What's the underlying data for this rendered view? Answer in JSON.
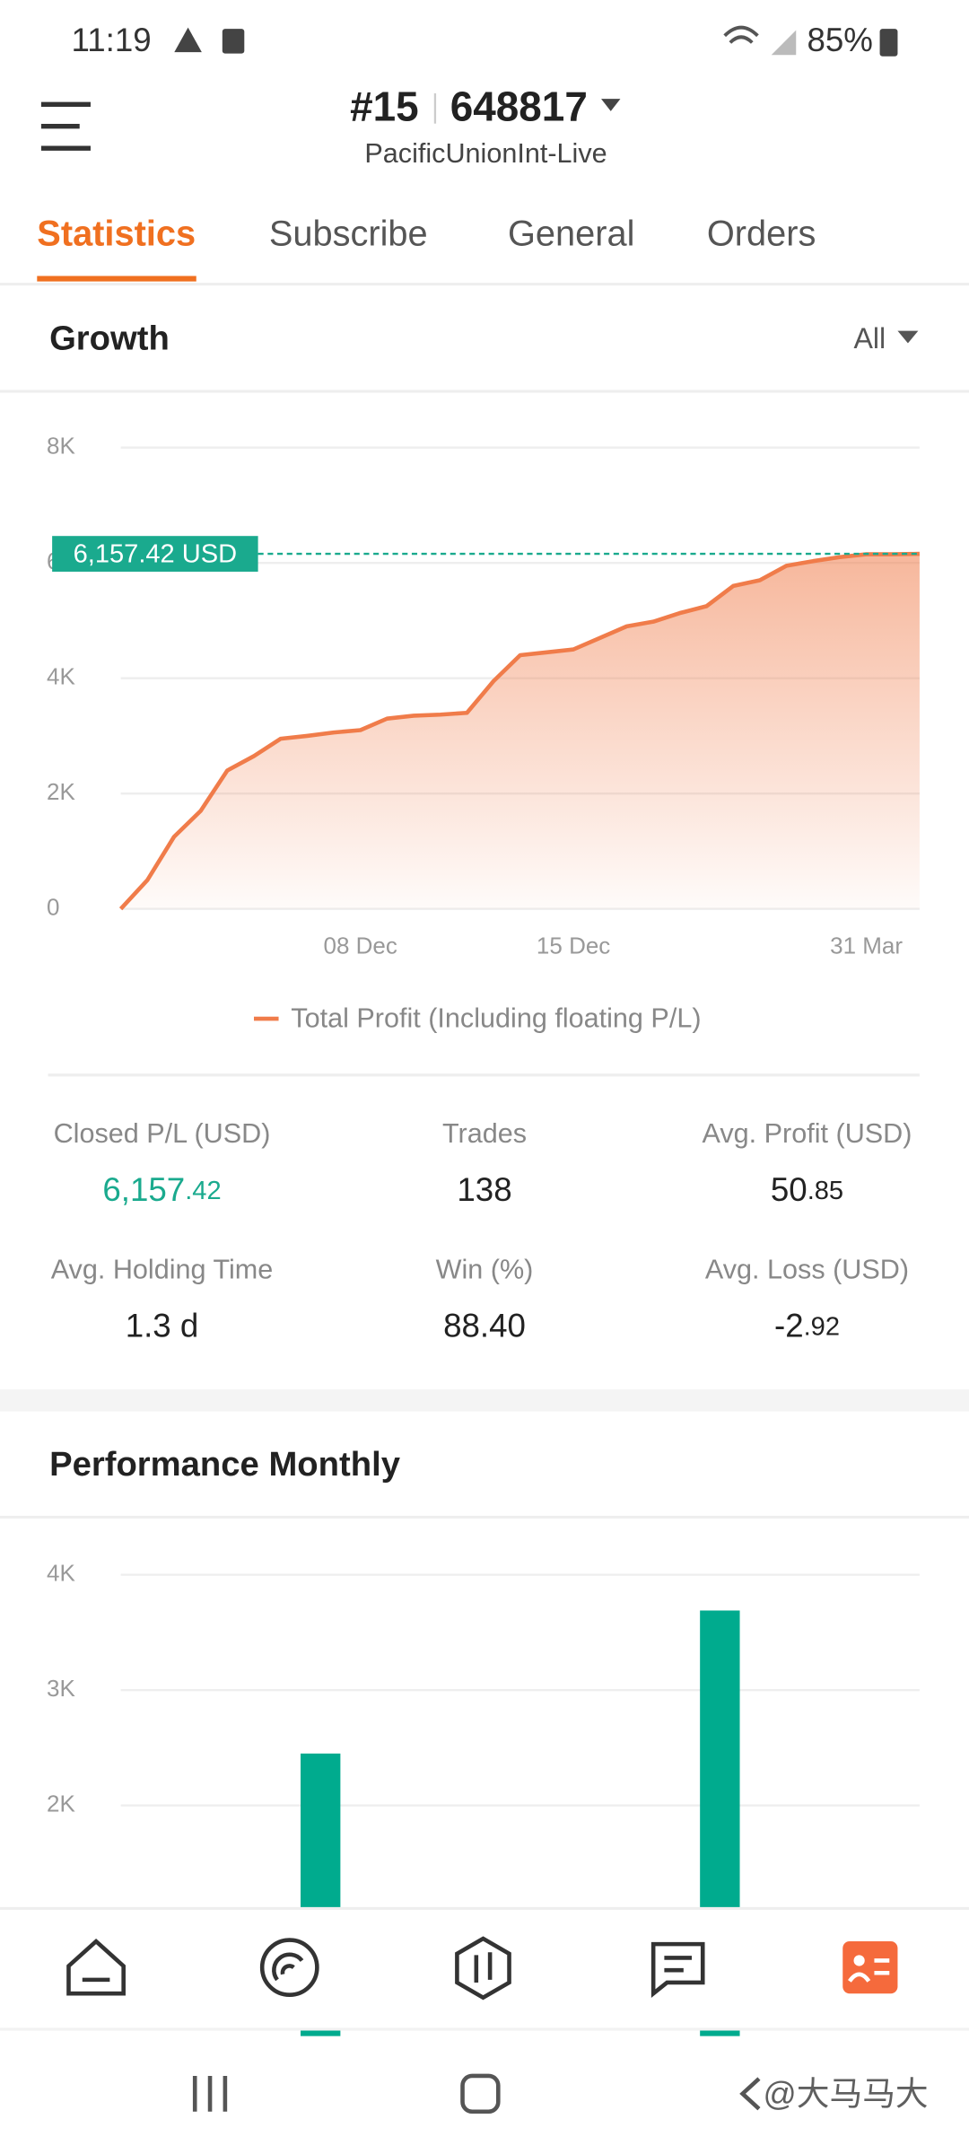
{
  "status_bar": {
    "time": "11:19",
    "battery": "85%"
  },
  "header": {
    "account": "#15",
    "number": "648817",
    "server": "PacificUnionInt-Live"
  },
  "tabs": [
    "Statistics",
    "Subscribe",
    "General",
    "Orders"
  ],
  "chart_data": [
    {
      "type": "area",
      "title": "Growth",
      "filter": "All",
      "categories": [
        null,
        null,
        null,
        null,
        null,
        null,
        null,
        null,
        null,
        "08 Dec",
        null,
        null,
        null,
        null,
        null,
        null,
        null,
        "15 Dec",
        null,
        null,
        null,
        null,
        null,
        null,
        null,
        null,
        null,
        null,
        "31 Mar",
        null,
        null
      ],
      "series": [
        {
          "name": "Total Profit (Including floating P/L)",
          "color": "#f07c4a",
          "values": [
            0,
            500,
            1250,
            1700,
            2400,
            2650,
            2950,
            3000,
            3060,
            3100,
            3300,
            3350,
            3370,
            3400,
            3950,
            4400,
            4450,
            4500,
            4700,
            4900,
            4980,
            5130,
            5250,
            5600,
            5700,
            5950,
            6030,
            6100,
            6150,
            6150,
            6157.42
          ]
        }
      ],
      "ylim": [
        0,
        8000
      ],
      "yticks": [
        0,
        {
          "value": 2000,
          "label": "2K"
        },
        {
          "value": 4000,
          "label": "4K"
        },
        {
          "value": 6000,
          "label": "6K"
        },
        {
          "value": 8000,
          "label": "8K"
        }
      ],
      "grid": true,
      "annotations": [
        {
          "value": 6157.42,
          "label": "6,157.42 USD",
          "color": "#1aaa8e"
        }
      ]
    },
    {
      "type": "bar",
      "title": "Performance Monthly",
      "categories": [
        null,
        null
      ],
      "values": [
        2450,
        3690
      ],
      "color": "#00ab8e",
      "ylim": [
        0,
        4000
      ],
      "yticks": [
        {
          "value": 2000,
          "label": "2K"
        },
        {
          "value": 3000,
          "label": "3K"
        },
        {
          "value": 4000,
          "label": "4K"
        }
      ],
      "grid": true
    }
  ],
  "stats": [
    {
      "label": "Closed P/L (USD)",
      "value": "6,157",
      "decimals": ".42",
      "color": "#1aaa8e"
    },
    {
      "label": "Trades",
      "value": "138"
    },
    {
      "label": "Avg. Profit (USD)",
      "value": "50",
      "decimals": ".85"
    },
    {
      "label": "Avg. Holding Time",
      "value": "1.3 d"
    },
    {
      "label": "Win (%)",
      "value": "88.40"
    },
    {
      "label": "Avg. Loss (USD)",
      "value": "-2",
      "decimals": ".92"
    }
  ],
  "watermark": "@大马马大"
}
